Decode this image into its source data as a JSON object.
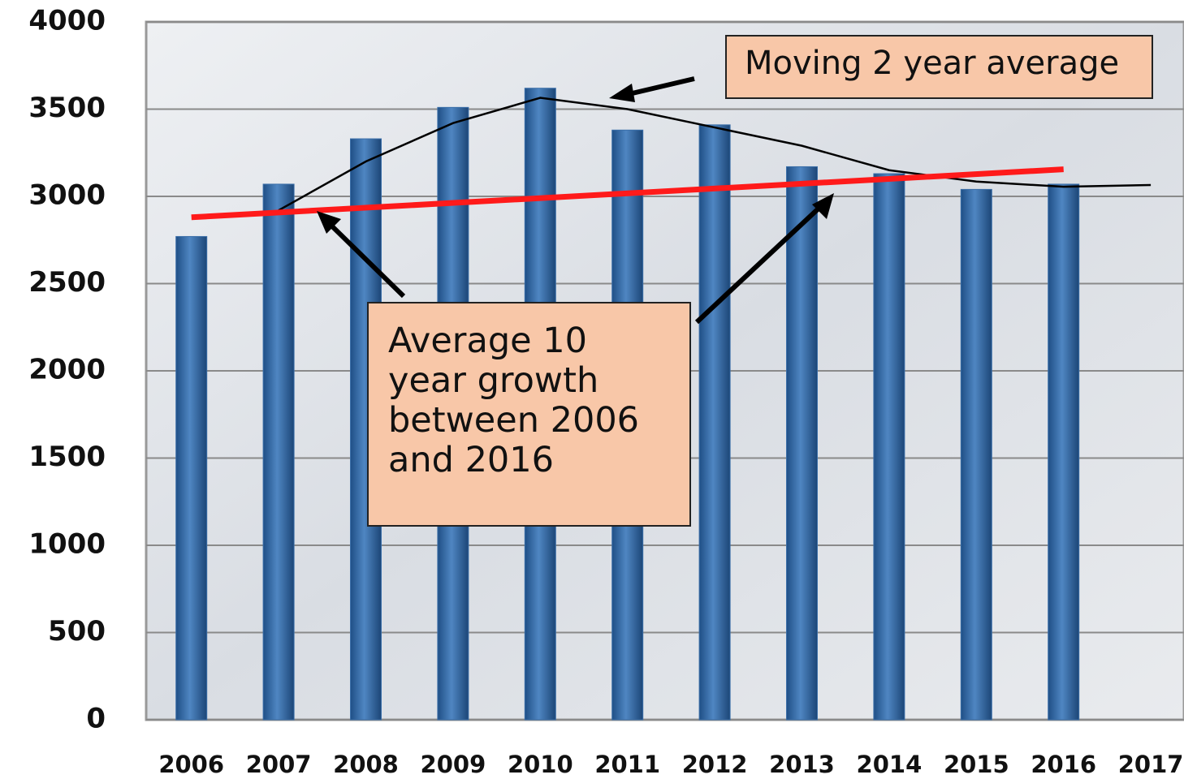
{
  "chart_data": {
    "type": "bar",
    "x": [
      2006,
      2007,
      2008,
      2009,
      2010,
      2011,
      2012,
      2013,
      2014,
      2015,
      2016,
      2017
    ],
    "values": [
      2770,
      3070,
      3330,
      3510,
      3620,
      3380,
      3410,
      3170,
      3130,
      3040,
      3070,
      null
    ],
    "color": "#3a6ea8",
    "moving_average": {
      "color": "#000000",
      "values": [
        null,
        2920,
        3200,
        3420,
        3565,
        3500,
        3395,
        3290,
        3150,
        3085,
        3055,
        3065
      ]
    },
    "trend": {
      "color": "#ff1a1a",
      "x": [
        2006,
        2016
      ],
      "values": [
        2880,
        3155
      ]
    },
    "xlim": [
      2005.5,
      2017.5
    ],
    "xticks": [
      2006,
      2007,
      2008,
      2009,
      2010,
      2011,
      2012,
      2013,
      2014,
      2015,
      2016,
      2017
    ],
    "ylim": [
      0,
      4000
    ],
    "yticks": [
      0,
      500,
      1000,
      1500,
      2000,
      2500,
      3000,
      3500,
      4000
    ],
    "grid": true,
    "annotations": [
      {
        "lines": [
          "Moving 2 year average"
        ]
      },
      {
        "lines": [
          "Average 10",
          "year growth",
          "between 2006",
          "and 2016"
        ]
      }
    ]
  }
}
